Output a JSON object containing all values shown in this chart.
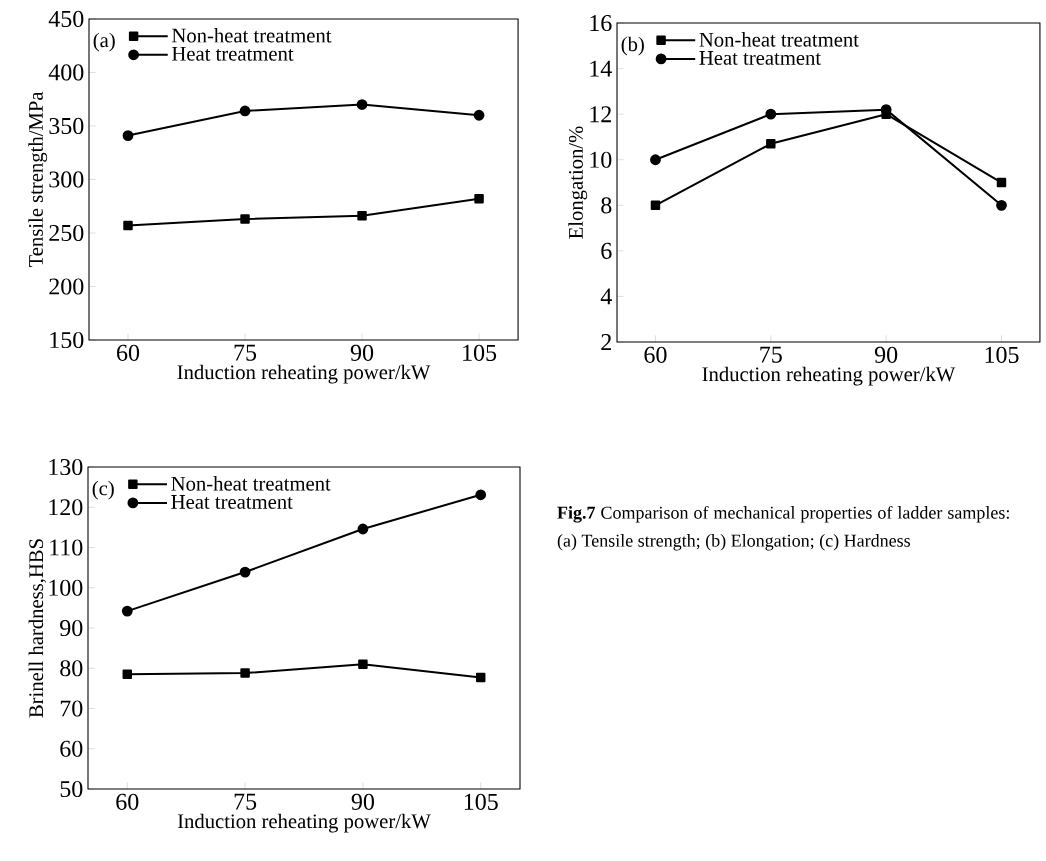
{
  "chart_data": [
    {
      "type": "line",
      "x": [
        60,
        75,
        90,
        105
      ],
      "xlim": [
        55,
        110
      ],
      "xticks": [
        60,
        75,
        90,
        105
      ],
      "ylim": [
        150,
        450
      ],
      "yticks": [
        150,
        200,
        250,
        300,
        350,
        400,
        450
      ],
      "xlabel": "Induction reheating power/kW",
      "ylabel": "Tensile strength/MPa",
      "legend": "top left",
      "annotations": [
        "(a)"
      ],
      "series": [
        {
          "name": "Non-heat treatment",
          "color": "#000000",
          "marker": "square",
          "values": [
            257,
            263,
            266,
            282
          ]
        },
        {
          "name": "Heat treatment",
          "color": "#000000",
          "marker": "circle",
          "values": [
            341,
            364,
            370,
            360
          ]
        }
      ]
    },
    {
      "type": "line",
      "x": [
        60,
        75,
        90,
        105
      ],
      "xlim": [
        55,
        110
      ],
      "xticks": [
        60,
        75,
        90,
        105
      ],
      "ylim": [
        2,
        16
      ],
      "yticks": [
        2,
        4,
        6,
        8,
        10,
        12,
        14,
        16
      ],
      "xlabel": "Induction reheating power/kW",
      "ylabel": "Elongation/%",
      "legend": "top left",
      "annotations": [
        "(b)"
      ],
      "series": [
        {
          "name": "Non-heat treatment",
          "color": "#000000",
          "marker": "square",
          "values": [
            8.0,
            10.7,
            12.0,
            9.0
          ]
        },
        {
          "name": "Heat treatment",
          "color": "#000000",
          "marker": "circle",
          "values": [
            10.0,
            12.0,
            12.2,
            8.0
          ]
        }
      ]
    },
    {
      "type": "line",
      "x": [
        60,
        75,
        90,
        105
      ],
      "xlim": [
        55,
        110
      ],
      "xticks": [
        60,
        75,
        90,
        105
      ],
      "ylim": [
        50,
        130
      ],
      "yticks": [
        50,
        60,
        70,
        80,
        90,
        100,
        110,
        120,
        130
      ],
      "xlabel": "Induction reheating power/kW",
      "ylabel": "Brinell hardness,HBS",
      "legend": "top left",
      "annotations": [
        "(c)",
        "**Fig.7** Comparison of mechanical properties of ladder samples: (a) Tensile strength; (b) Elongation; (c) Hardness"
      ],
      "series": [
        {
          "name": "Non-heat treatment",
          "color": "#000000",
          "marker": "square",
          "values": [
            78.5,
            78.8,
            81.0,
            77.7
          ]
        },
        {
          "name": "Heat treatment",
          "color": "#000000",
          "marker": "circle",
          "values": [
            94.2,
            103.9,
            114.6,
            123.1
          ]
        }
      ]
    }
  ]
}
